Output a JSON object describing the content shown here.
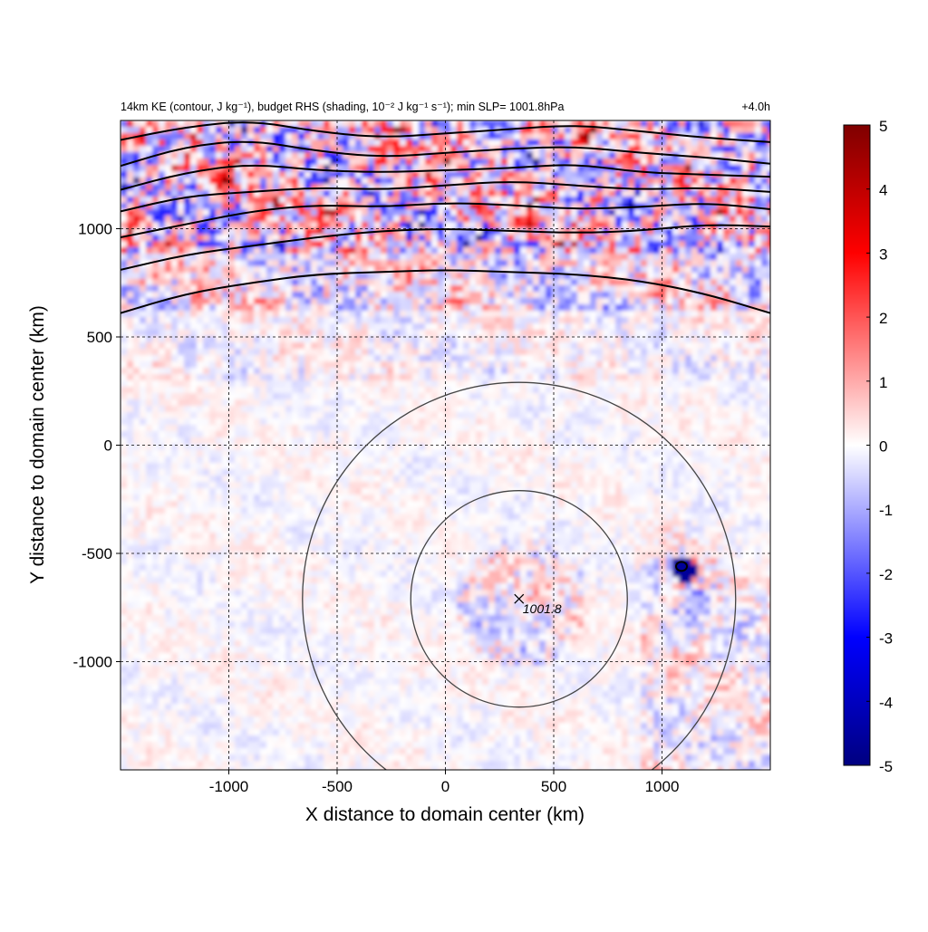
{
  "chart_data": {
    "type": "heatmap",
    "title_left": "14km KE (contour, J kg⁻¹), budget RHS (shading, 10⁻² J kg⁻¹ s⁻¹); min SLP= 1001.8hPa",
    "title_right": "+4.0h",
    "xlabel": "X distance to domain center (km)",
    "ylabel": "Y distance to domain center (km)",
    "xlim": [
      -1500,
      1500
    ],
    "ylim": [
      -1500,
      1500
    ],
    "x_ticks": [
      -1000,
      -500,
      0,
      500,
      1000
    ],
    "y_ticks": [
      -1000,
      -500,
      0,
      500,
      1000
    ],
    "grid": "dashed",
    "colorbar": {
      "min": -5,
      "max": 5,
      "ticks": [
        5,
        4,
        3,
        2,
        1,
        0,
        -1,
        -2,
        -3,
        -4,
        -5
      ],
      "colormap": "blue-white-red",
      "colors": {
        "neg_max": "#000080",
        "neg": "#0000ff",
        "zero": "#ffffff",
        "pos": "#ff0000",
        "pos_max": "#800000"
      }
    },
    "storm_center": {
      "x": 340,
      "y": -710,
      "label": "1001.8"
    },
    "range_circles_radius_km": [
      500,
      1000
    ],
    "ke_contours": [
      {
        "x": [
          -1500,
          -1200,
          -900,
          -600,
          -300,
          0,
          300,
          600,
          900,
          1200,
          1500
        ],
        "y": [
          610,
          700,
          750,
          790,
          800,
          810,
          800,
          790,
          760,
          700,
          610
        ]
      },
      {
        "x": [
          -1500,
          -1200,
          -900,
          -600,
          -300,
          0,
          300,
          600,
          900,
          1200,
          1500
        ],
        "y": [
          810,
          880,
          920,
          960,
          990,
          1000,
          990,
          980,
          990,
          1020,
          1010
        ]
      },
      {
        "x": [
          -1500,
          -1200,
          -900,
          -600,
          -300,
          0,
          300,
          600,
          900,
          1200,
          1500
        ],
        "y": [
          960,
          1020,
          1080,
          1110,
          1100,
          1120,
          1110,
          1090,
          1100,
          1120,
          1090
        ]
      },
      {
        "x": [
          -1500,
          -1200,
          -900,
          -600,
          -300,
          0,
          300,
          600,
          900,
          1200,
          1500
        ],
        "y": [
          1080,
          1150,
          1170,
          1190,
          1180,
          1200,
          1220,
          1200,
          1180,
          1190,
          1170
        ]
      },
      {
        "x": [
          -1500,
          -1200,
          -900,
          -600,
          -300,
          0,
          300,
          600,
          900,
          1200,
          1500
        ],
        "y": [
          1180,
          1260,
          1300,
          1270,
          1260,
          1270,
          1280,
          1300,
          1260,
          1250,
          1240
        ]
      },
      {
        "x": [
          -1500,
          -1200,
          -900,
          -600,
          -300,
          0,
          300,
          600,
          900,
          1200,
          1500
        ],
        "y": [
          1290,
          1380,
          1410,
          1360,
          1330,
          1350,
          1370,
          1380,
          1350,
          1330,
          1300
        ]
      },
      {
        "x": [
          -1500,
          -1200,
          -900,
          -600,
          -300,
          0,
          300,
          600,
          900,
          1200,
          1500
        ],
        "y": [
          1410,
          1470,
          1500,
          1450,
          1420,
          1440,
          1460,
          1480,
          1450,
          1420,
          1400
        ]
      }
    ]
  }
}
